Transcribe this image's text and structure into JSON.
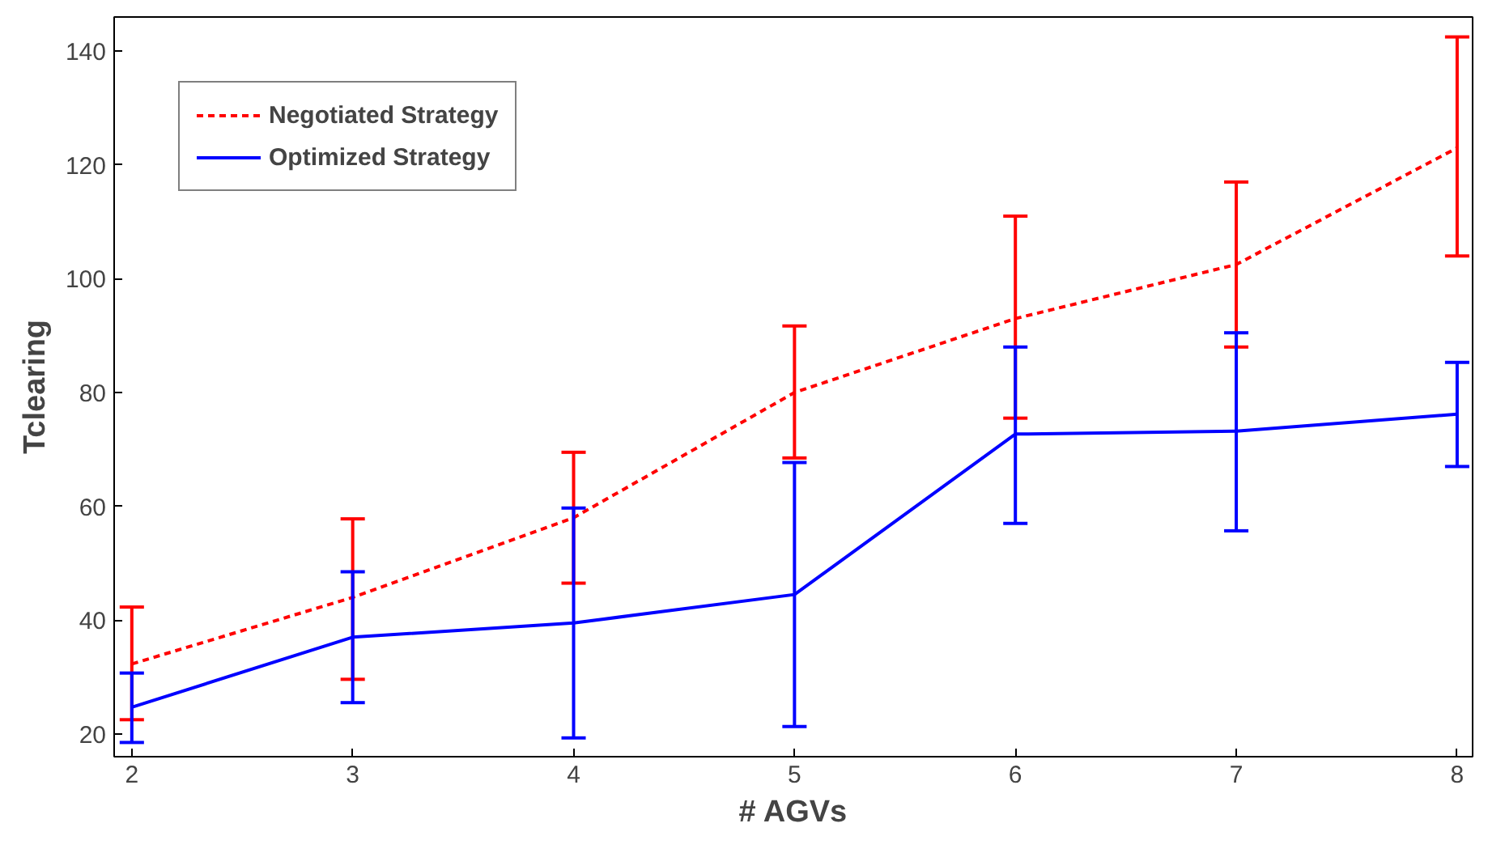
{
  "chart_data": {
    "type": "line",
    "xlabel": "# AGVs",
    "ylabel": "Tclearing",
    "x": [
      2,
      3,
      4,
      5,
      6,
      7,
      8
    ],
    "xlim": [
      1.92,
      8.07
    ],
    "ylim": [
      16,
      146
    ],
    "xticks": [
      2,
      3,
      4,
      5,
      6,
      7,
      8
    ],
    "yticks": [
      20,
      40,
      60,
      80,
      100,
      120,
      140
    ],
    "grid": false,
    "legend": "top left",
    "marker": "none",
    "series": [
      {
        "name": "Negotiated Strategy",
        "color": "#ff0000",
        "line_style": "dashed",
        "values": [
          32.3,
          44,
          58,
          80,
          93,
          102.5,
          123
        ],
        "errors": [
          [
            22.5,
            42.3
          ],
          [
            29.6,
            57.8
          ],
          [
            46.5,
            69.5
          ],
          [
            68.5,
            91.7
          ],
          [
            75.5,
            111
          ],
          [
            88,
            117
          ],
          [
            104,
            142.5
          ]
        ]
      },
      {
        "name": "Optimized Strategy",
        "color": "#0000ff",
        "line_style": "solid",
        "values": [
          24.7,
          37,
          39.5,
          44.5,
          72.7,
          73.2,
          76.2
        ],
        "errors": [
          [
            18.5,
            30.7
          ],
          [
            25.5,
            48.5
          ],
          [
            19.3,
            59.7
          ],
          [
            21.3,
            67.7
          ],
          [
            57,
            88
          ],
          [
            55.7,
            90.5
          ],
          [
            67,
            85.3
          ]
        ]
      }
    ]
  }
}
